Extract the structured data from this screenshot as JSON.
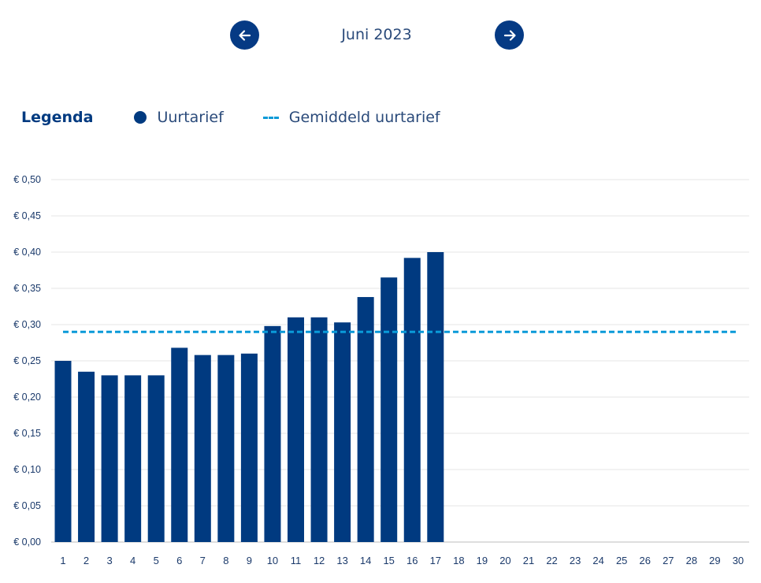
{
  "nav": {
    "prev_icon": "arrow-left-icon",
    "next_icon": "arrow-right-icon",
    "month_label": "Juni 2023"
  },
  "legend": {
    "title": "Legenda",
    "series_label": "Uurtarief",
    "avg_label": "Gemiddeld uurtarief"
  },
  "colors": {
    "bar": "#003a80",
    "avg_line": "#0a9ad8",
    "grid": "#e4e4e4",
    "axis_text": "#1b3a6b"
  },
  "chart_data": {
    "type": "bar",
    "title": "",
    "xlabel": "",
    "ylabel": "",
    "ylim": [
      0,
      0.5
    ],
    "ytick_step": 0.05,
    "y_tick_labels": [
      "€ 0,00",
      "€ 0,05",
      "€ 0,10",
      "€ 0,15",
      "€ 0,20",
      "€ 0,25",
      "€ 0,30",
      "€ 0,35",
      "€ 0,40",
      "€ 0,45",
      "€ 0,50"
    ],
    "categories": [
      "1",
      "2",
      "3",
      "4",
      "5",
      "6",
      "7",
      "8",
      "9",
      "10",
      "11",
      "12",
      "13",
      "14",
      "15",
      "16",
      "17",
      "18",
      "19",
      "20",
      "21",
      "22",
      "23",
      "24",
      "25",
      "26",
      "27",
      "28",
      "29",
      "30"
    ],
    "series": [
      {
        "name": "Uurtarief",
        "values": [
          0.25,
          0.235,
          0.23,
          0.23,
          0.23,
          0.268,
          0.258,
          0.258,
          0.26,
          0.298,
          0.31,
          0.31,
          0.303,
          0.338,
          0.365,
          0.392,
          0.4,
          null,
          null,
          null,
          null,
          null,
          null,
          null,
          null,
          null,
          null,
          null,
          null,
          null
        ]
      }
    ],
    "average": {
      "name": "Gemiddeld uurtarief",
      "value": 0.29
    },
    "legend_position": "top-left"
  }
}
